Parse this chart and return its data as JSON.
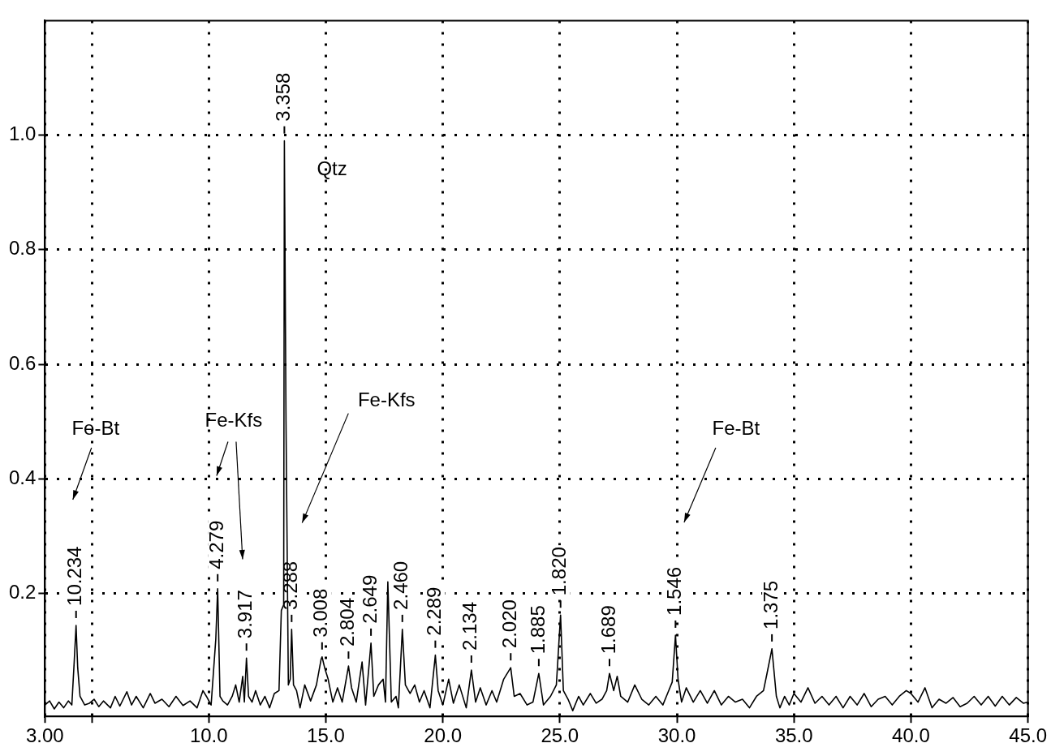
{
  "chart_data": {
    "type": "line",
    "xlim": [
      3,
      45
    ],
    "xticks": [
      {
        "value": 3,
        "label": "3.00"
      },
      {
        "value": 5,
        "label": null
      },
      {
        "value": 10,
        "label": "10.0"
      },
      {
        "value": 15,
        "label": "15.0"
      },
      {
        "value": 20,
        "label": "20.0"
      },
      {
        "value": 25,
        "label": "25.0"
      },
      {
        "value": 30,
        "label": "30.0"
      },
      {
        "value": 35,
        "label": "35.0"
      },
      {
        "value": 40,
        "label": "40.0"
      },
      {
        "value": 45,
        "label": "45.0"
      }
    ],
    "ylim": [
      -0.015,
      1.2
    ],
    "yticks": [
      0.2,
      0.4,
      0.6,
      0.8,
      {
        "value": 1,
        "label": "1.0"
      }
    ],
    "grid": true,
    "legend": false,
    "marker": "none",
    "line_style": "solid",
    "series": [
      {
        "color": "#000000",
        "x": [
          3.0,
          3.2,
          3.4,
          3.6,
          3.8,
          4.0,
          4.15,
          4.25,
          4.33,
          4.4,
          4.5,
          4.7,
          4.9,
          5.1,
          5.3,
          5.5,
          5.8,
          6.0,
          6.2,
          6.5,
          6.7,
          6.9,
          7.2,
          7.5,
          7.7,
          8.0,
          8.3,
          8.6,
          8.9,
          9.2,
          9.5,
          9.75,
          9.9,
          10.1,
          10.3,
          10.38,
          10.48,
          10.6,
          10.8,
          11.0,
          11.15,
          11.3,
          11.45,
          11.52,
          11.61,
          11.7,
          11.85,
          12.0,
          12.2,
          12.4,
          12.6,
          12.8,
          13.0,
          13.1,
          13.2,
          13.23,
          13.3,
          13.4,
          13.48,
          13.54,
          13.62,
          13.75,
          13.9,
          14.1,
          14.35,
          14.6,
          14.8,
          14.84,
          14.95,
          15.1,
          15.3,
          15.5,
          15.7,
          15.97,
          16.1,
          16.3,
          16.55,
          16.7,
          16.93,
          17.05,
          17.25,
          17.45,
          17.55,
          17.65,
          17.8,
          18.0,
          18.1,
          18.27,
          18.4,
          18.6,
          18.8,
          19.0,
          19.2,
          19.45,
          19.68,
          19.8,
          20.0,
          20.25,
          20.45,
          20.7,
          21.0,
          21.22,
          21.4,
          21.6,
          21.85,
          22.1,
          22.3,
          22.6,
          22.9,
          23.05,
          23.3,
          23.6,
          23.85,
          24.1,
          24.3,
          24.6,
          24.85,
          25.03,
          25.15,
          25.35,
          25.55,
          25.8,
          26.0,
          26.3,
          26.55,
          26.8,
          27.0,
          27.12,
          27.3,
          27.45,
          27.6,
          27.9,
          28.2,
          28.5,
          28.8,
          29.1,
          29.4,
          29.6,
          29.8,
          29.94,
          30.05,
          30.2,
          30.4,
          30.7,
          31.0,
          31.3,
          31.6,
          31.9,
          32.2,
          32.5,
          32.8,
          33.1,
          33.4,
          33.7,
          33.85,
          34.06,
          34.25,
          34.4,
          34.6,
          34.8,
          35.0,
          35.3,
          35.6,
          35.9,
          36.2,
          36.5,
          36.8,
          37.1,
          37.4,
          37.7,
          38.0,
          38.3,
          38.6,
          38.9,
          39.2,
          39.5,
          39.8,
          40.0,
          40.3,
          40.6,
          40.9,
          41.2,
          41.5,
          41.8,
          42.1,
          42.4,
          42.7,
          43.0,
          43.3,
          43.6,
          43.9,
          44.2,
          44.5,
          44.8,
          45.0
        ],
        "values": [
          0.005,
          0.012,
          -0.002,
          0.01,
          0.0,
          0.012,
          0.005,
          0.08,
          0.144,
          0.07,
          0.02,
          0.005,
          0.008,
          0.015,
          0.002,
          0.012,
          0.0,
          0.02,
          0.003,
          0.028,
          0.005,
          0.02,
          0.0,
          0.025,
          0.008,
          0.015,
          0.002,
          0.02,
          0.004,
          0.012,
          0.0,
          0.03,
          0.02,
          0.005,
          0.12,
          0.208,
          0.02,
          0.012,
          0.005,
          0.02,
          0.04,
          0.01,
          0.055,
          0.01,
          0.087,
          0.02,
          0.01,
          0.03,
          0.005,
          0.02,
          0.0,
          0.025,
          0.03,
          0.17,
          0.18,
          0.99,
          0.5,
          0.04,
          0.05,
          0.137,
          0.04,
          0.03,
          0.0,
          0.04,
          0.012,
          0.04,
          0.085,
          0.089,
          0.07,
          0.05,
          0.01,
          0.035,
          0.01,
          0.073,
          0.035,
          0.01,
          0.08,
          0.005,
          0.113,
          0.02,
          0.04,
          0.05,
          0.01,
          0.22,
          0.01,
          0.02,
          0.0,
          0.137,
          0.04,
          0.025,
          0.04,
          0.01,
          0.03,
          0.0,
          0.092,
          0.03,
          0.005,
          0.05,
          0.008,
          0.04,
          0.0,
          0.066,
          0.01,
          0.035,
          0.005,
          0.03,
          0.01,
          0.05,
          0.07,
          0.02,
          0.025,
          0.005,
          0.01,
          0.06,
          0.005,
          0.02,
          0.04,
          0.162,
          0.03,
          0.015,
          -0.005,
          0.02,
          0.005,
          0.025,
          0.008,
          0.015,
          0.03,
          0.06,
          0.03,
          0.055,
          0.02,
          0.01,
          0.04,
          0.015,
          0.005,
          0.02,
          0.005,
          0.025,
          0.045,
          0.127,
          0.05,
          0.01,
          0.035,
          0.01,
          0.03,
          0.008,
          0.03,
          0.005,
          0.02,
          0.01,
          0.015,
          0.0,
          0.02,
          0.03,
          0.06,
          0.103,
          0.02,
          0.0,
          0.02,
          0.005,
          0.025,
          0.01,
          0.035,
          0.008,
          0.02,
          0.005,
          0.02,
          0.0,
          0.02,
          0.005,
          0.025,
          0.002,
          0.015,
          0.02,
          0.005,
          0.02,
          0.03,
          0.025,
          0.01,
          0.035,
          0.0,
          0.015,
          0.008,
          0.018,
          0.002,
          0.008,
          0.02,
          0.005,
          0.02,
          0.003,
          0.02,
          0.005,
          0.018,
          0.008,
          0.01
        ]
      }
    ],
    "annotations": [
      "Fe-Bt",
      "Fe-Kfs",
      "Fe-Kfs",
      "Fe-Bt",
      "Qtz",
      {
        "text": "10.234",
        "x": 4.33,
        "y": 0.144
      },
      {
        "text": "4.279",
        "x": 10.38,
        "y": 0.208
      },
      {
        "text": "3.917",
        "x": 11.61,
        "y": 0.087
      },
      {
        "text": "3.358",
        "x": 13.23,
        "y": 0.99
      },
      {
        "text": "3.288",
        "x": 13.54,
        "y": 0.137
      },
      {
        "text": "3.008",
        "x": 14.84,
        "y": 0.089
      },
      {
        "text": "2.804",
        "x": 15.97,
        "y": 0.073
      },
      {
        "text": "2.649",
        "x": 16.93,
        "y": 0.113
      },
      {
        "text": "2.460",
        "x": 18.27,
        "y": 0.137
      },
      {
        "text": "2.289",
        "x": 19.68,
        "y": 0.092
      },
      {
        "text": "2.134",
        "x": 21.22,
        "y": 0.066
      },
      {
        "text": "2.020",
        "x": 22.9,
        "y": 0.07
      },
      {
        "text": "1.885",
        "x": 24.1,
        "y": 0.06
      },
      {
        "text": "1.820",
        "x": 25.03,
        "y": 0.162
      },
      {
        "text": "1.689",
        "x": 27.12,
        "y": 0.06
      },
      {
        "text": "1.546",
        "x": 29.94,
        "y": 0.127
      },
      {
        "text": "1.375",
        "x": 34.06,
        "y": 0.103
      }
    ]
  }
}
